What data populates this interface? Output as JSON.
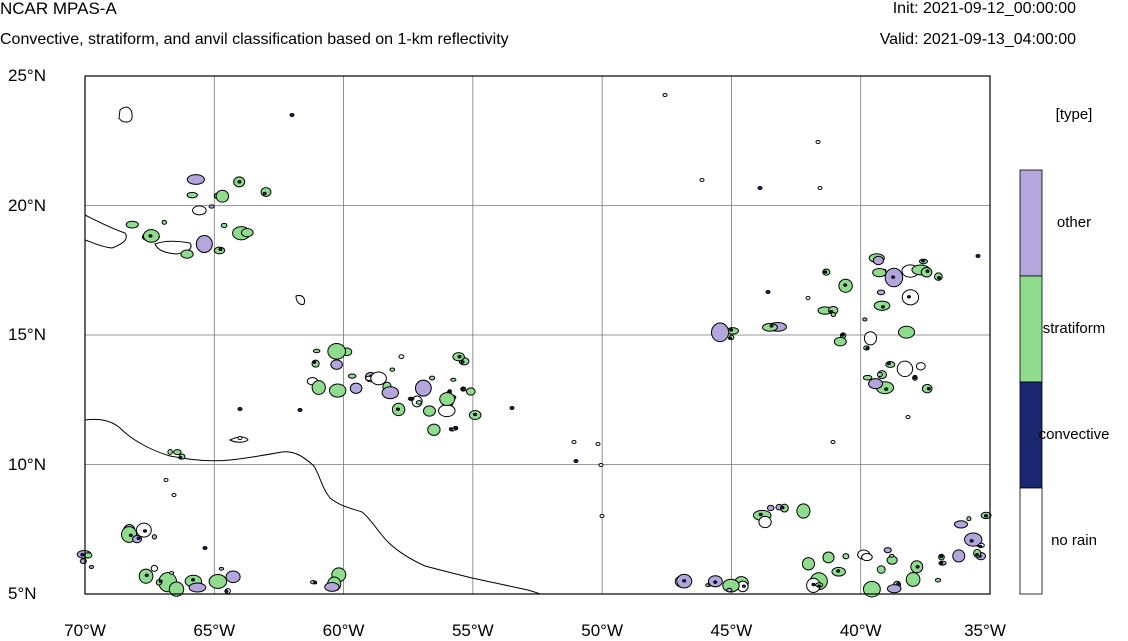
{
  "header": {
    "model": "NCAR MPAS-A",
    "subtitle": "Convective, stratiform, and anvil classification based on 1-km reflectivity",
    "init": "Init: 2021-09-12_00:00:00",
    "valid": "Valid: 2021-09-13_04:00:00"
  },
  "map": {
    "lon_range": [
      -70,
      -35
    ],
    "lat_range": [
      5,
      25
    ],
    "lon_ticks": [
      "70°W",
      "65°W",
      "60°W",
      "55°W",
      "50°W",
      "45°W",
      "40°W",
      "35°W"
    ],
    "lat_ticks": [
      "25°N",
      "20°N",
      "15°N",
      "10°N",
      "5°N"
    ],
    "grid": true
  },
  "colorbar": {
    "title": "[type]",
    "categories": [
      {
        "label": "other",
        "color": "#b3a6dc"
      },
      {
        "label": "stratiform",
        "color": "#8fdc8f"
      },
      {
        "label": "convective",
        "color": "#1a2670"
      },
      {
        "label": "no rain",
        "color": "#ffffff"
      }
    ]
  }
}
